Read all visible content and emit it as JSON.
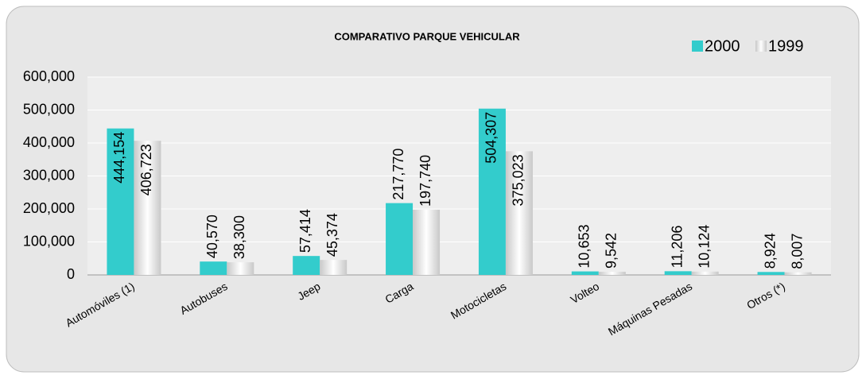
{
  "chart_data": {
    "type": "bar",
    "title": "COMPARATIVO  PARQUE  VEHICULAR",
    "categories": [
      "Automóviles (1)",
      "Autobuses",
      "Jeep",
      "Carga",
      "Motocicletas",
      "Volteo",
      "Máquinas  Pesadas",
      "Otros (*)"
    ],
    "series": [
      {
        "name": "2000",
        "color": "#33cccc",
        "values": [
          444154,
          40570,
          57414,
          217770,
          504307,
          10653,
          11206,
          8924
        ],
        "value_labels": [
          "444,154",
          "40,570",
          "57,414",
          "217,770",
          "504,307",
          "10,653",
          "11,206",
          "8,924"
        ]
      },
      {
        "name": "1999",
        "color": "#d9d9d9",
        "values": [
          406723,
          38300,
          45374,
          197740,
          375023,
          9542,
          10124,
          8007
        ],
        "value_labels": [
          "406,723",
          "38,300",
          "45,374",
          "197,740",
          "375,023",
          "9,542",
          "10,124",
          "8,007"
        ]
      }
    ],
    "ylim": [
      0,
      600000
    ],
    "yticks": [
      0,
      {
        "value": 100000,
        "label": "100,000"
      },
      {
        "value": 200000,
        "label": "200,000"
      },
      {
        "value": 300000,
        "label": "300,000"
      },
      {
        "value": 400000,
        "label": "400,000"
      },
      {
        "value": 500000,
        "label": "500,000"
      },
      {
        "value": 600000,
        "label": "600,000"
      }
    ],
    "grid": true,
    "legend": "top-right"
  }
}
